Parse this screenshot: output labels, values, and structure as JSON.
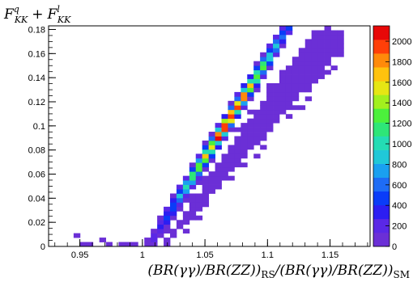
{
  "chart_data": {
    "type": "heatmap",
    "title": "F^q_KK + F^l_KK",
    "title_parts": {
      "a": "F",
      "a_sup": "q",
      "a_sub": "KK",
      "plus": "+",
      "b": "F",
      "b_sup": "l",
      "b_sub": "KK"
    },
    "xlabel": "(BR(γγ)/BR(ZZ))_RS/(BR(γγ)/BR(ZZ))_SM",
    "xlabel_parts": {
      "rs_term": "(BR(γγ)/BR(ZZ))",
      "rs_sub": "RS",
      "slash": "/",
      "sm_term": "(BR(γγ)/BR(ZZ))",
      "sm_sub": "SM"
    },
    "ylabel": "",
    "xlim": [
      0.925,
      1.182
    ],
    "ylim": [
      0,
      0.183
    ],
    "x_ticks": [
      {
        "v": 0.95,
        "label": "0.95"
      },
      {
        "v": 1.0,
        "label": "1"
      },
      {
        "v": 1.05,
        "label": "1.05"
      },
      {
        "v": 1.1,
        "label": "1.1"
      },
      {
        "v": 1.15,
        "label": "1.15"
      }
    ],
    "y_ticks": [
      {
        "v": 0,
        "label": "0"
      },
      {
        "v": 0.02,
        "label": "0.02"
      },
      {
        "v": 0.04,
        "label": "0.04"
      },
      {
        "v": 0.06,
        "label": "0.06"
      },
      {
        "v": 0.08,
        "label": "0.08"
      },
      {
        "v": 0.1,
        "label": "0.1"
      },
      {
        "v": 0.12,
        "label": "0.12"
      },
      {
        "v": 0.14,
        "label": "0.14"
      },
      {
        "v": 0.16,
        "label": "0.16"
      },
      {
        "v": 0.18,
        "label": "0.18"
      }
    ],
    "z_range": [
      0,
      2150
    ],
    "z_ticks": [
      {
        "v": 0,
        "label": "0"
      },
      {
        "v": 200,
        "label": "200"
      },
      {
        "v": 400,
        "label": "400"
      },
      {
        "v": 600,
        "label": "600"
      },
      {
        "v": 800,
        "label": "800"
      },
      {
        "v": 1000,
        "label": "1000"
      },
      {
        "v": 1200,
        "label": "1200"
      },
      {
        "v": 1400,
        "label": "1400"
      },
      {
        "v": 1600,
        "label": "1600"
      },
      {
        "v": 1800,
        "label": "1800"
      },
      {
        "v": 2000,
        "label": "2000"
      }
    ],
    "palette": [
      "#6b2fd6",
      "#5a28e6",
      "#2c1ef2",
      "#0a3cf8",
      "#1e6cf5",
      "#1aa0f0",
      "#20c8d8",
      "#24dcb4",
      "#2ee678",
      "#4cf03c",
      "#a2f01e",
      "#e6e614",
      "#ffc20e",
      "#ff8a0a",
      "#ff3f08",
      "#e80808"
    ],
    "grid": false,
    "legend": "colorbar-right",
    "model": {
      "x_bin_width": 0.00514,
      "y_bin_width": 0.00366,
      "ridge_slope": 1.62,
      "ridge_intercept": -1.627,
      "ridge_peak_x": 1.068,
      "ridge_sigma_x": 0.028,
      "ridge_width_y": 0.0045,
      "band_lower_slope": 1.17,
      "band_lower_intercept": -1.192,
      "band_upper_slope": 1.45,
      "band_upper_intercept": -1.47,
      "band_level": 15,
      "peak_level": 2050,
      "x_min": 0.945,
      "x_max": 1.16
    }
  }
}
